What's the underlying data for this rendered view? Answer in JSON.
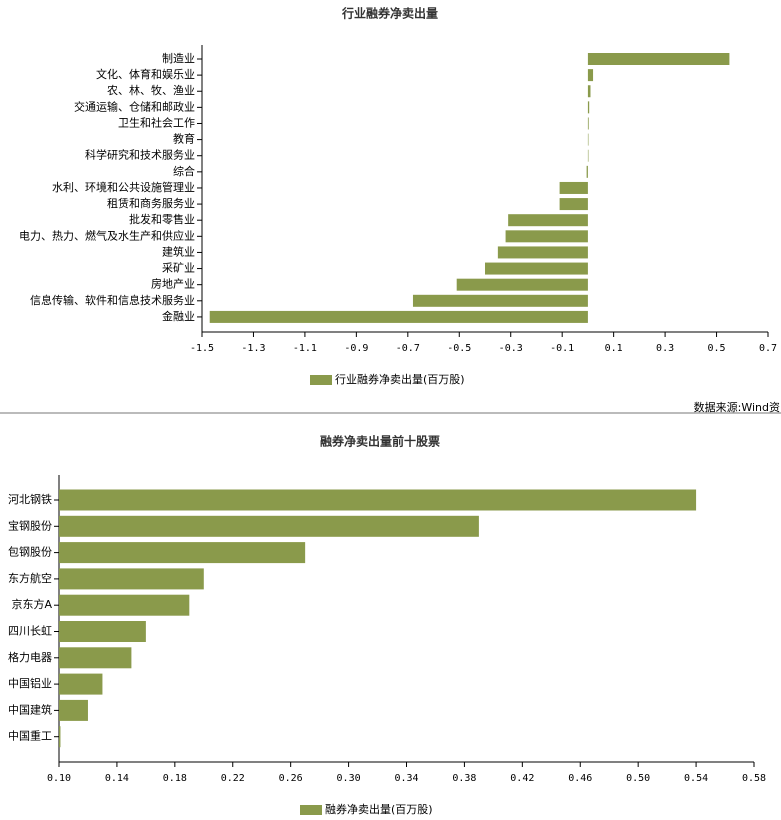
{
  "chart_data": [
    {
      "type": "bar",
      "orientation": "horizontal",
      "title": "行业融券净卖出量",
      "categories": [
        "制造业",
        "文化、体育和娱乐业",
        "农、林、牧、渔业",
        "交通运输、仓储和邮政业",
        "卫生和社会工作",
        "教育",
        "科学研究和技术服务业",
        "综合",
        "水利、环境和公共设施管理业",
        "租赁和商务服务业",
        "批发和零售业",
        "电力、热力、燃气及水生产和供应业",
        "建筑业",
        "采矿业",
        "房地产业",
        "信息传输、软件和信息技术服务业",
        "金融业"
      ],
      "series": [
        {
          "name": "行业融券净卖出量(百万股)",
          "color": "#8a9a4b",
          "values": [
            0.55,
            0.02,
            0.01,
            0.005,
            0.003,
            0.002,
            0.002,
            -0.005,
            -0.11,
            -0.11,
            -0.31,
            -0.32,
            -0.35,
            -0.4,
            -0.51,
            -0.68,
            -1.47
          ]
        }
      ],
      "xlim": [
        -1.5,
        0.7
      ],
      "xticks": [
        -1.5,
        -1.3,
        -1.1,
        -0.9,
        -0.7,
        -0.5,
        -0.3,
        -0.1,
        0.1,
        0.3,
        0.5,
        0.7
      ],
      "legend": "bottom",
      "source": "数据来源:Wind资"
    },
    {
      "type": "bar",
      "orientation": "horizontal",
      "title": "融券净卖出量前十股票",
      "categories": [
        "河北钢铁",
        "宝钢股份",
        "包钢股份",
        "东方航空",
        "京东方A",
        "四川长虹",
        "格力电器",
        "中国铝业",
        "中国建筑",
        "中国重工"
      ],
      "series": [
        {
          "name": "融券净卖出量(百万股)",
          "color": "#8a9a4b",
          "values": [
            0.54,
            0.39,
            0.27,
            0.2,
            0.19,
            0.16,
            0.15,
            0.13,
            0.12,
            0.101
          ]
        }
      ],
      "xlim": [
        0.1,
        0.58
      ],
      "xticks": [
        {
          "value": 0.1,
          "label": "0.10"
        },
        {
          "value": 0.14,
          "label": "0.14"
        },
        {
          "value": 0.18,
          "label": "0.18"
        },
        {
          "value": 0.22,
          "label": "0.22"
        },
        {
          "value": 0.26,
          "label": "0.26"
        },
        {
          "value": 0.3,
          "label": "0.30"
        },
        {
          "value": 0.34,
          "label": "0.34"
        },
        {
          "value": 0.38,
          "label": "0.38"
        },
        {
          "value": 0.42,
          "label": "0.42"
        },
        {
          "value": 0.46,
          "label": "0.46"
        },
        {
          "value": 0.5,
          "label": "0.50"
        },
        {
          "value": 0.54,
          "label": "0.54"
        },
        {
          "value": 0.58,
          "label": "0.58"
        }
      ],
      "legend": "bottom"
    }
  ]
}
